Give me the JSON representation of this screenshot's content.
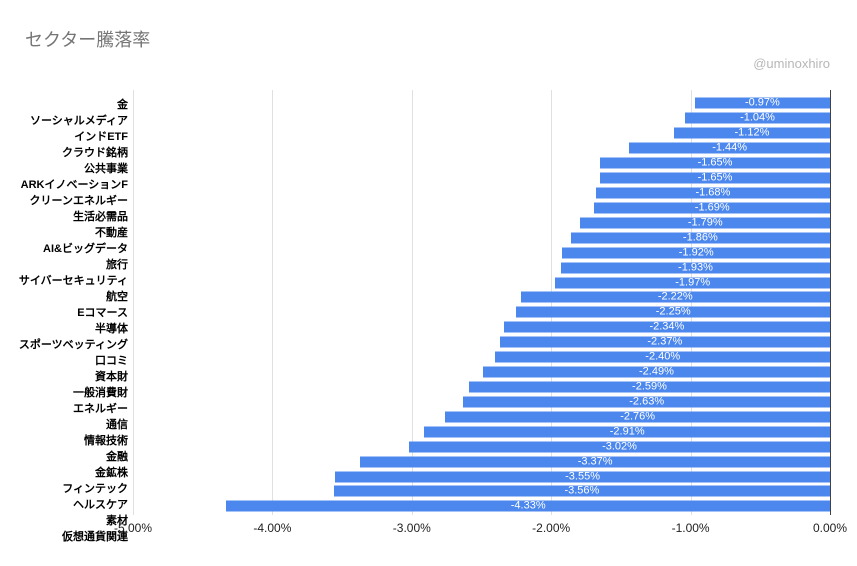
{
  "header": {
    "title": "セクター騰落率",
    "watermark": "@uminoxhiro"
  },
  "chart_data": {
    "type": "bar",
    "orientation": "horizontal",
    "title": "セクター騰落率",
    "xlabel": "",
    "ylabel": "",
    "xlim": [
      -5,
      0
    ],
    "grid": true,
    "legend": "none",
    "bar_color": "#4b87ed",
    "value_label_color": "#ffffff",
    "gridline_color": "#e0e0e0",
    "zero_line_color": "#424242",
    "x_ticks": [
      "-5.00%",
      "-4.00%",
      "-3.00%",
      "-2.00%",
      "-1.00%",
      "0.00%"
    ],
    "categories": [
      "金",
      "ソーシャルメディア",
      "インドETF",
      "クラウド銘柄",
      "公共事業",
      "ARKイノベーションF",
      "クリーンエネルギー",
      "生活必需品",
      "不動産",
      "AI&ビッグデータ",
      "旅行",
      "サイバーセキュリティ",
      "航空",
      "Eコマース",
      "半導体",
      "スポーツベッティング",
      "口コミ",
      "資本財",
      "一般消費財",
      "エネルギー",
      "通信",
      "情報技術",
      "金融",
      "金鉱株",
      "フィンテック",
      "ヘルスケア",
      "素材",
      "仮想通貨関連"
    ],
    "values": [
      -0.97,
      -1.04,
      -1.12,
      -1.44,
      -1.65,
      -1.65,
      -1.68,
      -1.69,
      -1.79,
      -1.86,
      -1.92,
      -1.93,
      -1.97,
      -2.22,
      -2.25,
      -2.34,
      -2.37,
      -2.4,
      -2.49,
      -2.59,
      -2.63,
      -2.76,
      -2.91,
      -3.02,
      -3.37,
      -3.55,
      -3.56,
      -4.33
    ],
    "labels": [
      "-0.97%",
      "-1.04%",
      "-1.12%",
      "-1.44%",
      "-1.65%",
      "-1.65%",
      "-1.68%",
      "-1.69%",
      "-1.79%",
      "-1.86%",
      "-1.92%",
      "-1.93%",
      "-1.97%",
      "-2.22%",
      "-2.25%",
      "-2.34%",
      "-2.37%",
      "-2.40%",
      "-2.49%",
      "-2.59%",
      "-2.63%",
      "-2.76%",
      "-2.91%",
      "-3.02%",
      "-3.37%",
      "-3.55%",
      "-3.56%",
      "-4.33%"
    ]
  }
}
